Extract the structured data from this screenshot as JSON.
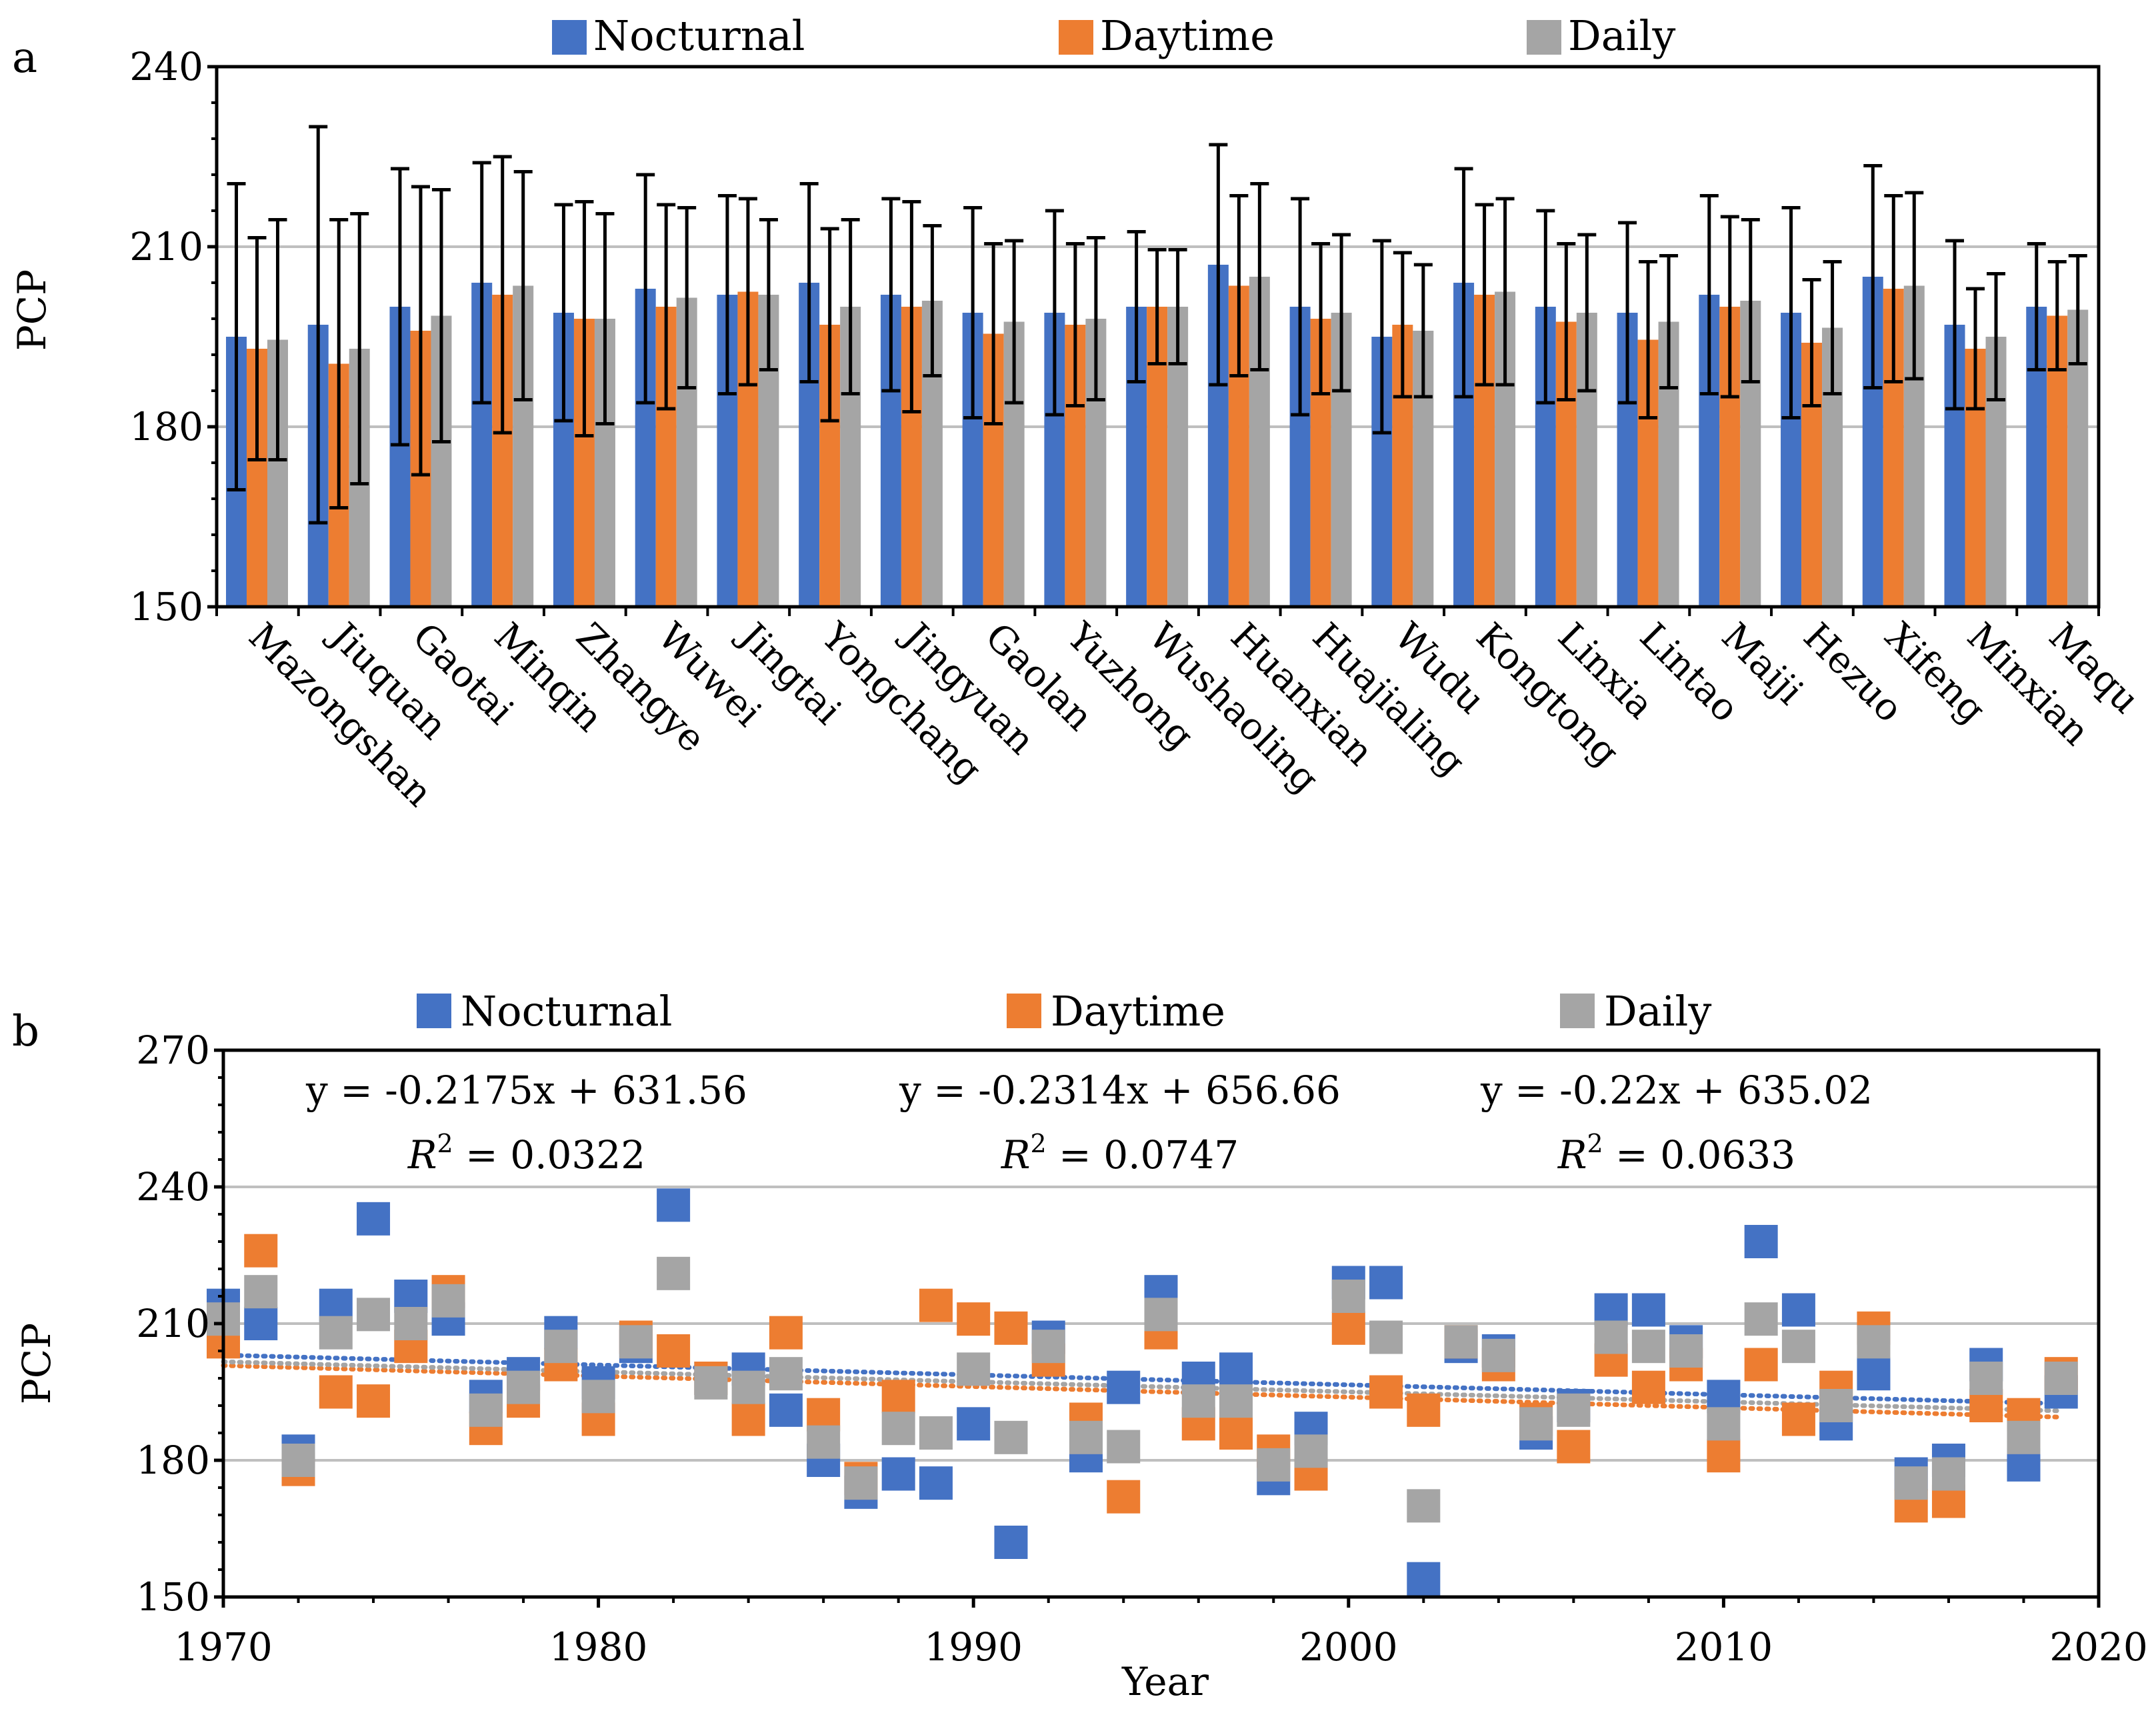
{
  "colors": {
    "nocturnal": "#4472C4",
    "daytime": "#ED7D31",
    "daily": "#A5A5A5",
    "grid": "#BFBFBF",
    "axis": "#000000"
  },
  "chart_data": [
    {
      "panel": "a",
      "type": "bar",
      "title": "",
      "ylabel": "PCP",
      "xlabel": "",
      "ylim": [
        150,
        240
      ],
      "yticks": [
        150,
        180,
        210,
        240
      ],
      "grid": true,
      "legend_placement": "top",
      "legend": [
        "Nocturnal",
        "Daytime",
        "Daily"
      ],
      "categories": [
        "Mazongshan",
        "Jiuquan",
        "Gaotai",
        "Minqin",
        "Zhangye",
        "Wuwei",
        "Jingtai",
        "Yongchang",
        "Jingyuan",
        "Gaolan",
        "Yuzhong",
        "Wushaoling",
        "Huanxian",
        "Huajialing",
        "Wudu",
        "Kongtong",
        "Linxia",
        "Lintao",
        "Maiji",
        "Hezuo",
        "Xifeng",
        "Minxian",
        "Maqu"
      ],
      "series": [
        {
          "name": "Nocturnal",
          "values": [
            195,
            197,
            200,
            204,
            199,
            203,
            202,
            204,
            202,
            199,
            199,
            200,
            207,
            200,
            195,
            204,
            200,
            199,
            202,
            199,
            205,
            197,
            200
          ],
          "err": [
            25.5,
            33,
            23,
            20,
            18,
            19,
            16.5,
            16.5,
            16,
            17.5,
            17,
            12.5,
            20,
            18,
            16,
            19,
            16,
            15,
            16.5,
            17.5,
            18.5,
            14,
            10.5
          ]
        },
        {
          "name": "Daytime",
          "values": [
            193,
            190.5,
            196,
            202,
            198,
            200,
            202.5,
            197,
            200,
            195.5,
            197,
            200,
            203.5,
            198,
            197,
            202,
            197.5,
            194.5,
            200,
            194,
            203,
            193,
            198.5
          ],
          "err": [
            18.5,
            24,
            24,
            23,
            19.5,
            17,
            15.5,
            16,
            17.5,
            15,
            13.5,
            9.5,
            15,
            12.5,
            12,
            15,
            13,
            13,
            15,
            10.5,
            15.5,
            10,
            9
          ]
        },
        {
          "name": "Daily",
          "values": [
            194.5,
            193,
            198.5,
            203.5,
            198,
            201.5,
            202,
            200,
            201,
            197.5,
            198,
            200,
            205,
            199,
            196,
            202.5,
            199,
            197.5,
            201,
            196.5,
            203.5,
            195,
            199.5
          ],
          "err": [
            20,
            22.5,
            21,
            19,
            17.5,
            15,
            12.5,
            14.5,
            12.5,
            13.5,
            13.5,
            9.5,
            15.5,
            13,
            11,
            15.5,
            13,
            11,
            13.5,
            11,
            15.5,
            10.5,
            9
          ]
        }
      ]
    },
    {
      "panel": "b",
      "type": "scatter",
      "title": "",
      "ylabel": "PCP",
      "xlabel": "Year",
      "xlim": [
        1970,
        2020
      ],
      "xticks": [
        1970,
        1980,
        1990,
        2000,
        2010,
        2020
      ],
      "ylim": [
        150,
        270
      ],
      "yticks": [
        150,
        180,
        210,
        240,
        270
      ],
      "grid": true,
      "legend_placement": "top",
      "legend": [
        "Nocturnal",
        "Daytime",
        "Daily"
      ],
      "x": [
        1970,
        1971,
        1972,
        1973,
        1974,
        1975,
        1976,
        1977,
        1978,
        1979,
        1980,
        1981,
        1982,
        1983,
        1984,
        1985,
        1986,
        1987,
        1988,
        1989,
        1990,
        1991,
        1992,
        1993,
        1994,
        1995,
        1996,
        1997,
        1998,
        1999,
        2000,
        2001,
        2002,
        2003,
        2004,
        2005,
        2006,
        2007,
        2008,
        2009,
        2010,
        2011,
        2012,
        2013,
        2014,
        2015,
        2016,
        2017,
        2018,
        2019
      ],
      "series": [
        {
          "name": "Nocturnal",
          "values": [
            214,
            210,
            182,
            214,
            233,
            216,
            211,
            194,
            199,
            208,
            197,
            205,
            236,
            198,
            200,
            191,
            180,
            173,
            177,
            175,
            188,
            162,
            207,
            181,
            196,
            217,
            198,
            200,
            176,
            187,
            219,
            219,
            154,
            205,
            204,
            186,
            192,
            213,
            213,
            206,
            194,
            228,
            213,
            188,
            199,
            177,
            180,
            201,
            179,
            195
          ],
          "trend": {
            "slope": -0.2175,
            "intercept": 631.56,
            "r2": 0.0322
          }
        },
        {
          "name": "Daytime",
          "values": [
            206,
            226,
            178,
            195,
            193,
            205,
            217,
            187,
            193,
            201,
            189,
            207,
            204,
            198,
            189,
            208,
            190,
            176,
            194,
            214,
            211,
            209,
            202,
            189,
            172,
            208,
            188,
            186,
            182,
            177,
            209,
            195,
            191,
            206,
            201,
            189,
            183,
            202,
            196,
            201,
            181,
            201,
            189,
            196,
            209,
            170,
            171,
            192,
            190,
            199
          ],
          "trend": {
            "slope": -0.2314,
            "intercept": 656.66,
            "r2": 0.0747
          }
        },
        {
          "name": "Daily",
          "values": [
            211,
            217,
            180,
            208,
            212,
            210,
            215,
            191,
            196,
            205,
            194,
            206,
            221,
            197,
            196,
            199,
            184,
            175,
            187,
            186,
            200,
            185,
            205,
            185,
            183,
            212,
            193,
            193,
            179,
            182,
            216,
            207,
            170,
            206,
            203,
            188,
            191,
            207,
            205,
            204,
            188,
            211,
            205,
            192,
            206,
            175,
            177,
            198,
            185,
            198
          ],
          "trend": {
            "slope": -0.22,
            "intercept": 635.02,
            "r2": 0.0633
          }
        }
      ],
      "equations": [
        {
          "eq": "y = -0.2175x + 631.56",
          "r2_label": "R",
          "r2_sup": "2",
          "r2_value": " = 0.0322"
        },
        {
          "eq": "y = -0.2314x + 656.66",
          "r2_label": "R",
          "r2_sup": "2",
          "r2_value": " = 0.0747"
        },
        {
          "eq": "y = -0.22x + 635.02",
          "r2_label": "R",
          "r2_sup": "2",
          "r2_value": " = 0.0633"
        }
      ]
    }
  ],
  "panel_labels": [
    "a",
    "b"
  ]
}
